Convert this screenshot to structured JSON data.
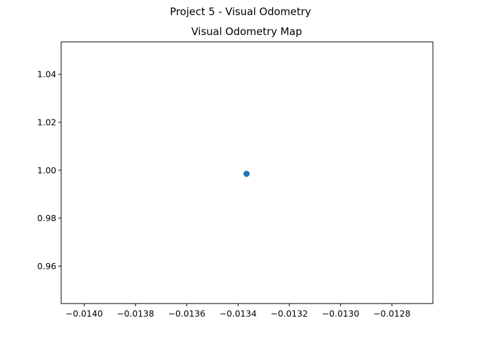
{
  "figure": {
    "suptitle": "Project 5 - Visual Odometry"
  },
  "colors": {
    "marker": "#1f77b4",
    "axes": "#000000",
    "background": "#ffffff"
  },
  "chart_data": {
    "type": "scatter",
    "title": "Visual Odometry Map",
    "xlabel": "",
    "ylabel": "",
    "xlim": [
      -0.01409,
      -0.01264
    ],
    "ylim": [
      0.9444,
      1.0535
    ],
    "grid": false,
    "legend": "none",
    "x_ticks": [
      -0.014,
      -0.0138,
      -0.0136,
      -0.0134,
      -0.0132,
      -0.013,
      -0.0128
    ],
    "x_tick_labels": [
      "−0.0140",
      "−0.0138",
      "−0.0136",
      "−0.0134",
      "−0.0132",
      "−0.0130",
      "−0.0128"
    ],
    "y_ticks": [
      0.96,
      0.98,
      1.0,
      1.02,
      1.04
    ],
    "y_tick_labels": [
      "0.96",
      "0.98",
      "1.00",
      "1.02",
      "1.04"
    ],
    "series": [
      {
        "x": [
          -0.013367
        ],
        "y": [
          0.9985
        ]
      }
    ]
  }
}
